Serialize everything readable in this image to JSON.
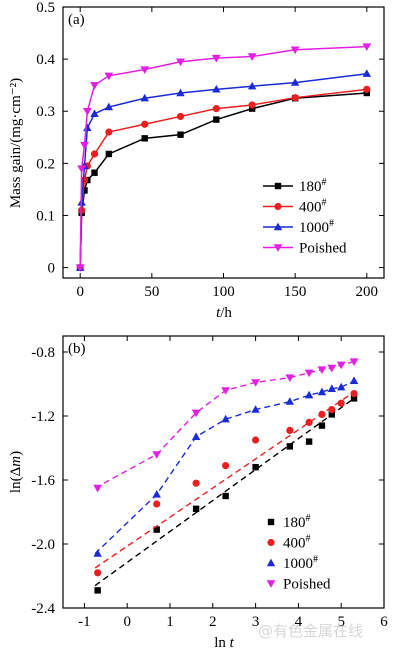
{
  "chart_data": [
    {
      "panel_label": "(a)",
      "type": "line",
      "xlabel": "t/h",
      "ylabel": "Mass gain/(mg·cm⁻²)",
      "xlim": [
        -12,
        212
      ],
      "ylim": [
        -0.02,
        0.5
      ],
      "xticks": [
        0,
        50,
        100,
        150,
        200
      ],
      "yticks": [
        0,
        0.1,
        0.2,
        0.3,
        0.4,
        0.5
      ],
      "ytick_labels": [
        "0",
        "0.1",
        "0.2",
        "0.3",
        "0.4",
        "0.5"
      ],
      "legend_position": "lower-right",
      "grid": false,
      "series": [
        {
          "name": "180#",
          "color": "#000000",
          "marker": "square",
          "x": [
            0,
            1,
            3,
            5,
            10,
            20,
            45,
            70,
            95,
            120,
            150,
            200
          ],
          "y": [
            0.0,
            0.105,
            0.148,
            0.168,
            0.182,
            0.218,
            0.248,
            0.255,
            0.284,
            0.305,
            0.325,
            0.335
          ]
        },
        {
          "name": "400#",
          "color": "#e8201f",
          "marker": "circle",
          "x": [
            0,
            1,
            3,
            5,
            10,
            20,
            45,
            70,
            95,
            120,
            150,
            200
          ],
          "y": [
            0.0,
            0.11,
            0.168,
            0.195,
            0.218,
            0.26,
            0.275,
            0.29,
            0.305,
            0.312,
            0.326,
            0.342
          ]
        },
        {
          "name": "1000#",
          "color": "#1a2bd6",
          "marker": "triangle-up",
          "x": [
            0,
            1,
            3,
            5,
            10,
            20,
            45,
            70,
            95,
            120,
            150,
            200
          ],
          "y": [
            0.0,
            0.125,
            0.195,
            0.268,
            0.295,
            0.308,
            0.325,
            0.335,
            0.342,
            0.348,
            0.355,
            0.372
          ]
        },
        {
          "name": "Poished",
          "color": "#e21fe2",
          "marker": "triangle-down",
          "x": [
            0,
            1,
            3,
            5,
            10,
            20,
            45,
            70,
            95,
            120,
            150,
            200
          ],
          "y": [
            0.0,
            0.19,
            0.235,
            0.3,
            0.35,
            0.368,
            0.38,
            0.395,
            0.402,
            0.405,
            0.418,
            0.424
          ]
        }
      ]
    },
    {
      "panel_label": "(b)",
      "type": "scatter",
      "xlabel": "ln t",
      "ylabel": "ln(Δm)",
      "xlim": [
        -1.5,
        6
      ],
      "ylim": [
        -2.4,
        -0.7
      ],
      "xticks": [
        -1,
        0,
        1,
        2,
        3,
        4,
        5,
        6
      ],
      "yticks": [
        -2.4,
        -2.0,
        -1.6,
        -1.2,
        -0.8
      ],
      "ytick_labels": [
        "-2.4",
        "-2.0",
        "-1.6",
        "-1.2",
        "-0.8"
      ],
      "legend_position": "lower-right",
      "grid": false,
      "series": [
        {
          "name": "180#",
          "color": "#000000",
          "marker": "square",
          "x": [
            -0.69,
            0.69,
            1.61,
            2.3,
            3.0,
            3.8,
            4.25,
            4.55,
            4.78,
            5.3
          ],
          "y": [
            -2.29,
            -1.91,
            -1.78,
            -1.7,
            -1.52,
            -1.39,
            -1.36,
            -1.26,
            -1.19,
            -1.09
          ],
          "fit_x": [
            -0.75,
            5.3
          ],
          "fit_y": [
            -2.26,
            -1.09
          ]
        },
        {
          "name": "400#",
          "color": "#e8201f",
          "marker": "circle",
          "x": [
            -0.69,
            0.69,
            1.61,
            2.3,
            3.0,
            3.8,
            4.25,
            4.55,
            4.78,
            5.0,
            5.3
          ],
          "y": [
            -2.18,
            -1.75,
            -1.62,
            -1.51,
            -1.35,
            -1.29,
            -1.24,
            -1.19,
            -1.16,
            -1.12,
            -1.06
          ],
          "fit_x": [
            -0.75,
            5.3
          ],
          "fit_y": [
            -2.15,
            -1.05
          ]
        },
        {
          "name": "1000#",
          "color": "#1a2bd6",
          "marker": "triangle-up",
          "x": [
            -0.69,
            0.69,
            1.61,
            2.3,
            3.0,
            3.8,
            4.25,
            4.55,
            4.78,
            5.0,
            5.3
          ],
          "y": [
            -2.06,
            -1.69,
            -1.33,
            -1.22,
            -1.16,
            -1.11,
            -1.07,
            -1.05,
            -1.03,
            -1.02,
            -0.98
          ],
          "fit_x": [
            -0.75,
            0.69,
            1.61,
            2.3,
            3.0,
            3.8,
            4.25,
            4.55,
            4.78,
            5.0,
            5.3
          ],
          "fit_y": [
            -2.06,
            -1.69,
            -1.33,
            -1.22,
            -1.16,
            -1.11,
            -1.07,
            -1.05,
            -1.03,
            -1.02,
            -0.98
          ]
        },
        {
          "name": "Poished",
          "color": "#e21fe2",
          "marker": "triangle-down",
          "x": [
            -0.69,
            0.69,
            1.61,
            2.3,
            3.0,
            3.8,
            4.25,
            4.55,
            4.78,
            5.0,
            5.3
          ],
          "y": [
            -1.65,
            -1.44,
            -1.18,
            -1.04,
            -0.99,
            -0.96,
            -0.93,
            -0.91,
            -0.9,
            -0.88,
            -0.86
          ],
          "fit_x": [
            -0.75,
            0.69,
            1.61,
            2.3,
            3.0,
            3.8,
            4.25,
            4.55,
            4.78,
            5.0,
            5.3
          ],
          "fit_y": [
            -1.65,
            -1.44,
            -1.18,
            -1.04,
            -0.99,
            -0.96,
            -0.93,
            -0.91,
            -0.9,
            -0.88,
            -0.86
          ]
        }
      ]
    }
  ],
  "watermark": "@有色金属在线"
}
